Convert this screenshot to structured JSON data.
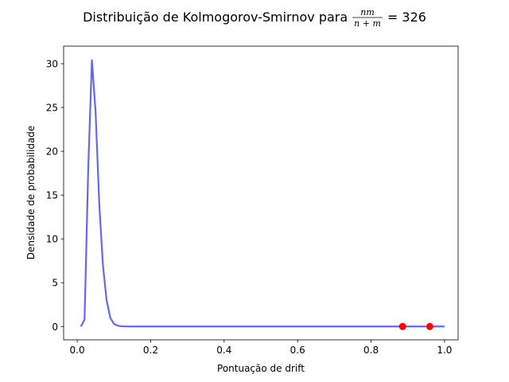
{
  "chart_data": {
    "type": "line",
    "title_prefix": "Distribuição de Kolmogorov-Smirnov para",
    "title_frac_num": "nm",
    "title_frac_den": "n + m",
    "title_suffix": "= 326",
    "xlabel": "Pontuação de drift",
    "ylabel": "Densidade de probabilidade",
    "xlim": [
      -0.037,
      1.037
    ],
    "ylim": [
      -1.52,
      32.0
    ],
    "xticks": [
      0.0,
      0.2,
      0.4,
      0.6,
      0.8,
      1.0
    ],
    "xtick_labels": [
      "0.0",
      "0.2",
      "0.4",
      "0.6",
      "0.8",
      "1.0"
    ],
    "yticks": [
      0,
      5,
      10,
      15,
      20,
      25,
      30
    ],
    "ytick_labels": [
      "0",
      "5",
      "10",
      "15",
      "20",
      "25",
      "30"
    ],
    "grid": false,
    "series": [
      {
        "style": "line",
        "color": "#6666ee",
        "x": [
          0.01,
          0.02,
          0.03,
          0.04,
          0.05,
          0.06,
          0.07,
          0.08,
          0.09,
          0.1,
          0.11,
          0.12,
          0.13,
          0.15,
          0.2,
          0.3,
          0.4,
          0.5,
          0.6,
          0.7,
          0.8,
          0.9,
          1.0
        ],
        "y": [
          0.0,
          0.8,
          18.0,
          30.4,
          24.5,
          14.0,
          7.0,
          3.0,
          1.0,
          0.3,
          0.1,
          0.03,
          0.01,
          0.0,
          0.0,
          0.0,
          0.0,
          0.0,
          0.0,
          0.0,
          0.0,
          0.0,
          0.0
        ]
      },
      {
        "style": "points",
        "color": "#ff0000",
        "x": [
          0.886,
          0.96
        ],
        "y": [
          0.0,
          0.0
        ]
      }
    ]
  }
}
